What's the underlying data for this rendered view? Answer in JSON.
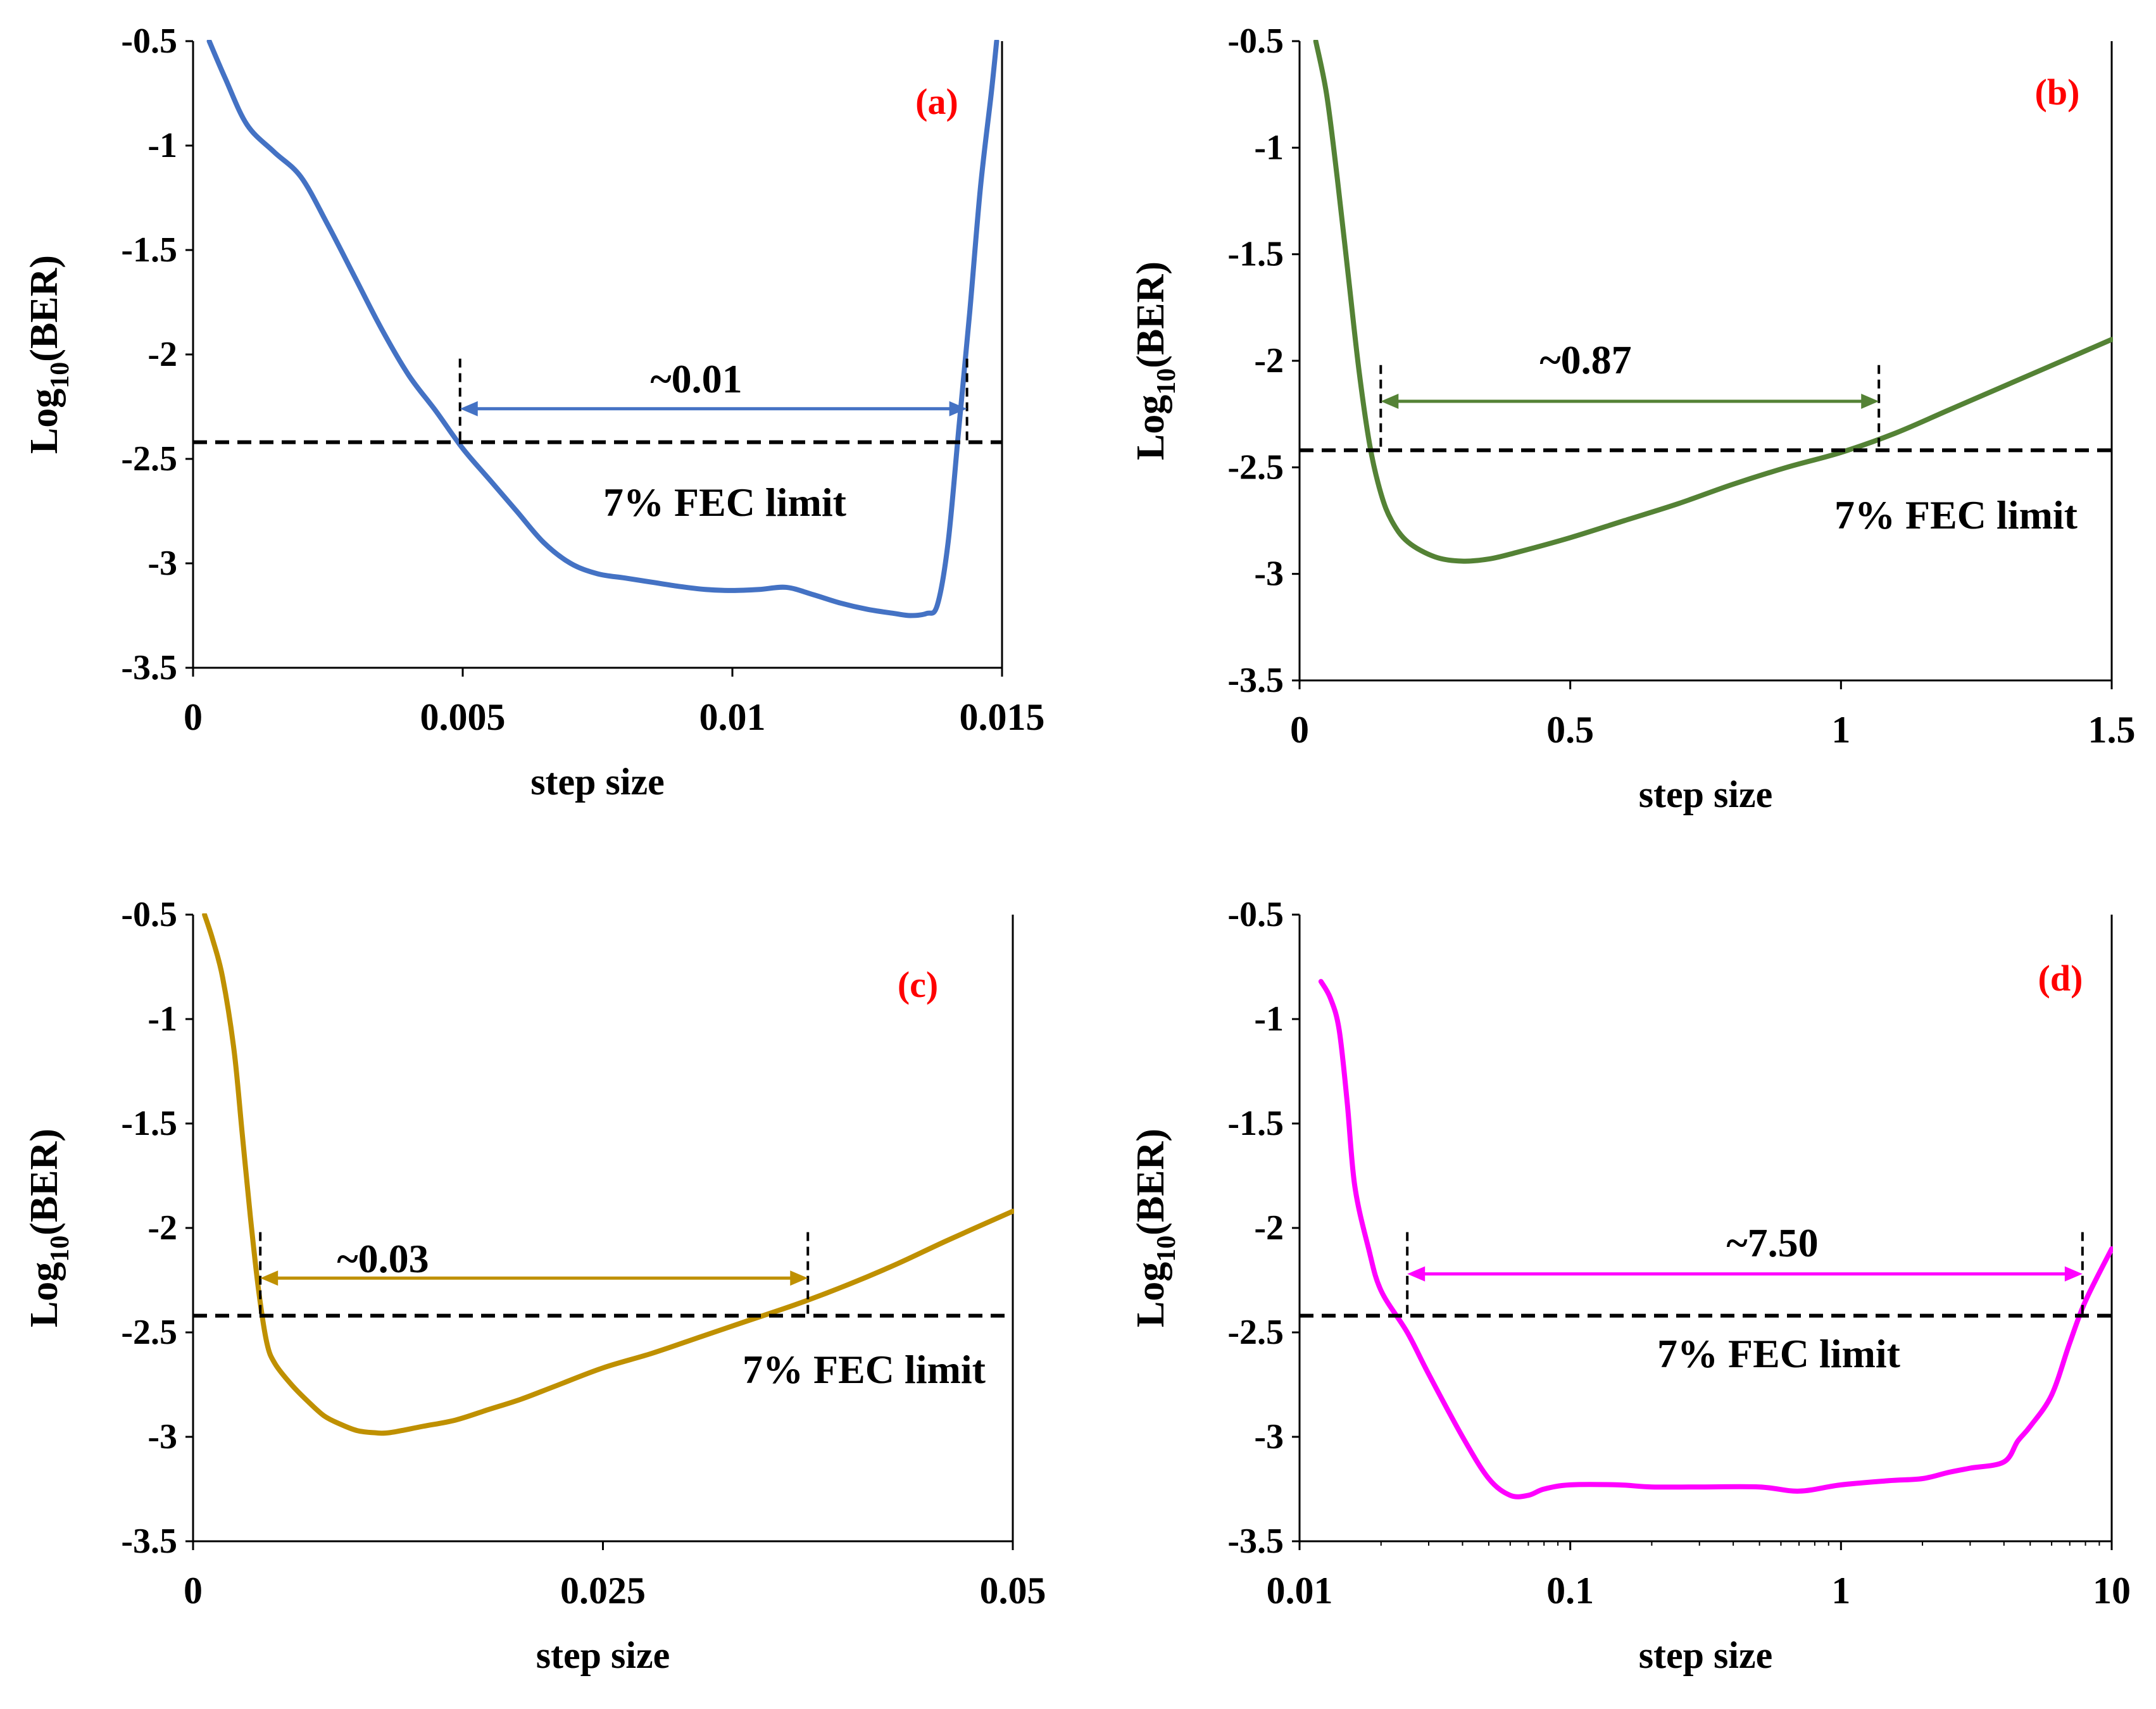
{
  "chart_data": [
    {
      "type": "line",
      "panel_label": "(a)",
      "xlabel": "step size",
      "ylabel_main": "Log",
      "ylabel_sub": "10",
      "ylabel_rest": "(BER)",
      "xscale": "linear",
      "xlim": [
        0,
        0.015
      ],
      "ylim": [
        -3.5,
        -0.5
      ],
      "xticks": [
        0,
        0.005,
        0.01,
        0.015
      ],
      "xtick_labels": [
        "0",
        "0.005",
        "0.01",
        "0.015"
      ],
      "yticks": [
        -0.5,
        -1,
        -1.5,
        -2,
        -2.5,
        -3,
        -3.5
      ],
      "ytick_labels": [
        "-0.5",
        "-1",
        "-1.5",
        "-2",
        "-2.5",
        "-3",
        "-3.5"
      ],
      "color": "#4472C4",
      "series": [
        {
          "name": "BER",
          "x": [
            0.0003,
            0.0006,
            0.001,
            0.0015,
            0.002,
            0.0025,
            0.003,
            0.0035,
            0.004,
            0.0045,
            0.005,
            0.0055,
            0.006,
            0.0065,
            0.007,
            0.0075,
            0.008,
            0.0085,
            0.009,
            0.0095,
            0.01,
            0.0105,
            0.011,
            0.0115,
            0.012,
            0.0125,
            0.013,
            0.0133,
            0.0136,
            0.0138,
            0.014,
            0.0142,
            0.0144,
            0.0146,
            0.0148,
            0.0149
          ],
          "y": [
            -0.5,
            -0.68,
            -0.9,
            -1.03,
            -1.15,
            -1.38,
            -1.63,
            -1.88,
            -2.1,
            -2.27,
            -2.45,
            -2.6,
            -2.75,
            -2.9,
            -3.0,
            -3.05,
            -3.07,
            -3.09,
            -3.11,
            -3.125,
            -3.13,
            -3.125,
            -3.115,
            -3.15,
            -3.19,
            -3.22,
            -3.24,
            -3.25,
            -3.24,
            -3.2,
            -2.9,
            -2.35,
            -1.8,
            -1.2,
            -0.75,
            -0.5
          ]
        }
      ],
      "fec_limit": -2.42,
      "fec_label": "7% FEC limit",
      "range_label": "~0.01",
      "range_x": [
        0.00495,
        0.01435
      ],
      "arrow_y": -2.26,
      "vline_top": -2.02
    },
    {
      "type": "line",
      "panel_label": "(b)",
      "xlabel": "step size",
      "ylabel_main": "Log",
      "ylabel_sub": "10",
      "ylabel_rest": "(BER)",
      "xscale": "linear",
      "xlim": [
        0,
        1.5
      ],
      "ylim": [
        -3.5,
        -0.5
      ],
      "xticks": [
        0,
        0.5,
        1,
        1.5
      ],
      "xtick_labels": [
        "0",
        "0.5",
        "1",
        "1.5"
      ],
      "yticks": [
        -0.5,
        -1,
        -1.5,
        -2,
        -2.5,
        -3,
        -3.5
      ],
      "ytick_labels": [
        "-0.5",
        "-1",
        "-1.5",
        "-2",
        "-2.5",
        "-3",
        "-3.5"
      ],
      "color": "#548235",
      "series": [
        {
          "name": "BER",
          "x": [
            0.03,
            0.05,
            0.07,
            0.09,
            0.11,
            0.13,
            0.15,
            0.17,
            0.2,
            0.25,
            0.3,
            0.35,
            0.4,
            0.5,
            0.6,
            0.7,
            0.8,
            0.9,
            1.0,
            1.1,
            1.2,
            1.3,
            1.4,
            1.5
          ],
          "y": [
            -0.5,
            -0.75,
            -1.15,
            -1.6,
            -2.05,
            -2.4,
            -2.62,
            -2.75,
            -2.85,
            -2.92,
            -2.94,
            -2.93,
            -2.9,
            -2.83,
            -2.75,
            -2.67,
            -2.58,
            -2.5,
            -2.43,
            -2.34,
            -2.23,
            -2.12,
            -2.01,
            -1.9
          ]
        }
      ],
      "fec_limit": -2.42,
      "fec_label": "7% FEC limit",
      "range_label": "~0.87",
      "range_x": [
        0.15,
        1.07
      ],
      "arrow_y": -2.19,
      "vline_top": -2.02
    },
    {
      "type": "line",
      "panel_label": "(c)",
      "xlabel": "step size",
      "ylabel_main": "Log",
      "ylabel_sub": "10",
      "ylabel_rest": "(BER)",
      "xscale": "linear",
      "xlim": [
        0,
        0.05
      ],
      "ylim": [
        -3.5,
        -0.5
      ],
      "xticks": [
        0,
        0.025,
        0.05
      ],
      "xtick_labels": [
        "0",
        "0.025",
        "0.05"
      ],
      "yticks": [
        -0.5,
        -1,
        -1.5,
        -2,
        -2.5,
        -3,
        -3.5
      ],
      "ytick_labels": [
        "-0.5",
        "-1",
        "-1.5",
        "-2",
        "-2.5",
        "-3",
        "-3.5"
      ],
      "color": "#BF9000",
      "series": [
        {
          "name": "BER",
          "x": [
            0.0007,
            0.0012,
            0.0018,
            0.0025,
            0.003,
            0.0035,
            0.004,
            0.0045,
            0.005,
            0.006,
            0.007,
            0.008,
            0.009,
            0.01,
            0.011,
            0.012,
            0.014,
            0.016,
            0.018,
            0.02,
            0.022,
            0.025,
            0.028,
            0.031,
            0.034,
            0.037,
            0.04,
            0.043,
            0.046,
            0.05
          ],
          "y": [
            -0.5,
            -0.62,
            -0.8,
            -1.15,
            -1.55,
            -1.95,
            -2.3,
            -2.55,
            -2.65,
            -2.75,
            -2.83,
            -2.9,
            -2.94,
            -2.97,
            -2.98,
            -2.98,
            -2.95,
            -2.92,
            -2.87,
            -2.82,
            -2.76,
            -2.67,
            -2.6,
            -2.52,
            -2.44,
            -2.36,
            -2.27,
            -2.17,
            -2.06,
            -1.92
          ]
        }
      ],
      "fec_limit": -2.42,
      "fec_label": "7% FEC limit",
      "range_label": "~0.03",
      "range_x": [
        0.0041,
        0.0375
      ],
      "arrow_y": -2.24,
      "vline_top": -2.02
    },
    {
      "type": "line",
      "panel_label": "(d)",
      "xlabel": "step size",
      "ylabel_main": "Log",
      "ylabel_sub": "10",
      "ylabel_rest": "(BER)",
      "xscale": "log",
      "xlim": [
        0.01,
        10
      ],
      "ylim": [
        -3.5,
        -0.5
      ],
      "xticks": [
        0.01,
        0.1,
        1,
        10
      ],
      "xtick_labels": [
        "0.01",
        "0.1",
        "1",
        "10"
      ],
      "yticks": [
        -0.5,
        -1,
        -1.5,
        -2,
        -2.5,
        -3,
        -3.5
      ],
      "ytick_labels": [
        "-0.5",
        "-1",
        "-1.5",
        "-2",
        "-2.5",
        "-3",
        "-3.5"
      ],
      "color": "#FF00FF",
      "series": [
        {
          "name": "BER",
          "x": [
            0.012,
            0.013,
            0.014,
            0.015,
            0.016,
            0.018,
            0.02,
            0.025,
            0.03,
            0.04,
            0.05,
            0.06,
            0.07,
            0.08,
            0.1,
            0.15,
            0.2,
            0.3,
            0.5,
            0.7,
            1.0,
            1.5,
            2.0,
            2.5,
            3.0,
            4.0,
            4.5,
            5.0,
            6.0,
            7.0,
            8.0,
            10.0
          ],
          "y": [
            -0.82,
            -0.9,
            -1.05,
            -1.4,
            -1.8,
            -2.1,
            -2.3,
            -2.5,
            -2.7,
            -3.0,
            -3.2,
            -3.28,
            -3.28,
            -3.25,
            -3.23,
            -3.23,
            -3.24,
            -3.24,
            -3.24,
            -3.26,
            -3.23,
            -3.21,
            -3.2,
            -3.17,
            -3.15,
            -3.12,
            -3.02,
            -2.95,
            -2.8,
            -2.55,
            -2.35,
            -2.1
          ]
        }
      ],
      "fec_limit": -2.42,
      "fec_label": "7% FEC limit",
      "range_label": "~7.50",
      "range_x": [
        0.025,
        7.8
      ],
      "arrow_y": -2.22,
      "vline_top": -2.02
    }
  ]
}
